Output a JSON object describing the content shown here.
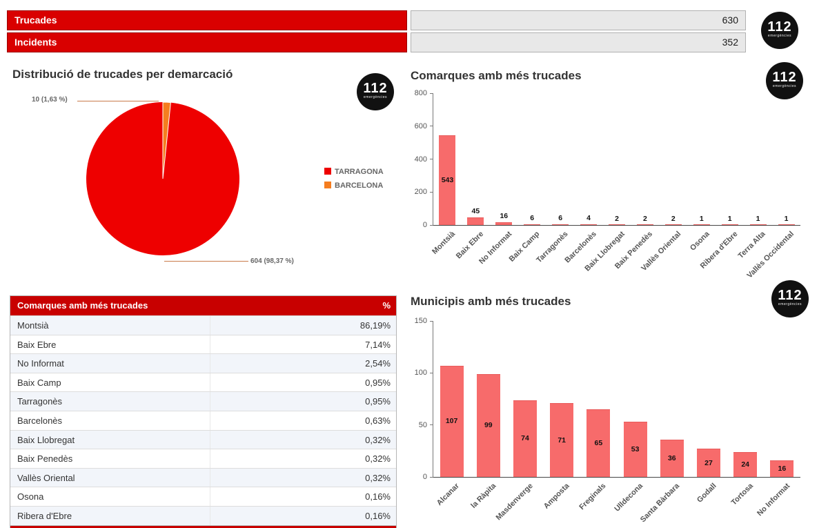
{
  "logo": {
    "text": "112",
    "subtext": "emergències"
  },
  "colors": {
    "kpi_red": "#d90000",
    "table_header_red": "#c80000",
    "bar_fill": "#f76b6b",
    "pie_red": "#ee0000",
    "pie_orange": "#f57d1f",
    "value_box_bg": "#e8e8e8"
  },
  "topbar": {
    "rows": [
      {
        "label": "Trucades",
        "value": "630"
      },
      {
        "label": "Incidents",
        "value": "352"
      }
    ]
  },
  "chart_data": [
    {
      "type": "pie",
      "title": "Distribució de trucades per demarcació",
      "slices": [
        {
          "label": "TARRAGONA",
          "value": 604,
          "pct": "98,37 %",
          "color": "#ee0000"
        },
        {
          "label": "BARCELONA",
          "value": 10,
          "pct": "1,63 %",
          "color": "#f57d1f"
        }
      ],
      "annotations": [
        "10 (1,63 %)",
        "604 (98,37 %)"
      ],
      "legend_position": "right"
    },
    {
      "type": "bar",
      "title": "Comarques amb més trucades",
      "categories": [
        "Montsià",
        "Baix Ebre",
        "No Informat",
        "Baix Camp",
        "Tarragonès",
        "Barcelonès",
        "Baix Llobregat",
        "Baix Penedès",
        "Vallès Oriental",
        "Osona",
        "Ribera d'Ebre",
        "Terra Alta",
        "Vallès Occidental"
      ],
      "values": [
        543,
        45,
        16,
        6,
        6,
        4,
        2,
        2,
        2,
        1,
        1,
        1,
        1
      ],
      "ylim": [
        0,
        800
      ],
      "yticks": [
        0,
        200,
        400,
        600,
        800
      ],
      "xlabel": "",
      "ylabel": ""
    },
    {
      "type": "bar",
      "title": "Municipis amb més trucades",
      "categories": [
        "Alcanar",
        "la Ràpita",
        "Masdenverge",
        "Amposta",
        "Freginals",
        "Ulldecona",
        "Santa Bàrbara",
        "Godall",
        "Tortosa",
        "No Informat"
      ],
      "values": [
        107,
        99,
        74,
        71,
        65,
        53,
        36,
        27,
        24,
        16
      ],
      "ylim": [
        0,
        150
      ],
      "yticks": [
        0,
        50,
        100,
        150
      ],
      "xlabel": "",
      "ylabel": ""
    }
  ],
  "table": {
    "title": "Comarques amb més trucades",
    "pct_header": "%",
    "rows": [
      [
        "Montsià",
        "86,19%"
      ],
      [
        "Baix Ebre",
        "7,14%"
      ],
      [
        "No Informat",
        "2,54%"
      ],
      [
        "Baix Camp",
        "0,95%"
      ],
      [
        "Tarragonès",
        "0,95%"
      ],
      [
        "Barcelonès",
        "0,63%"
      ],
      [
        "Baix Llobregat",
        "0,32%"
      ],
      [
        "Baix Penedès",
        "0,32%"
      ],
      [
        "Vallès Oriental",
        "0,32%"
      ],
      [
        "Osona",
        "0,16%"
      ],
      [
        "Ribera d'Ebre",
        "0,16%"
      ]
    ]
  }
}
